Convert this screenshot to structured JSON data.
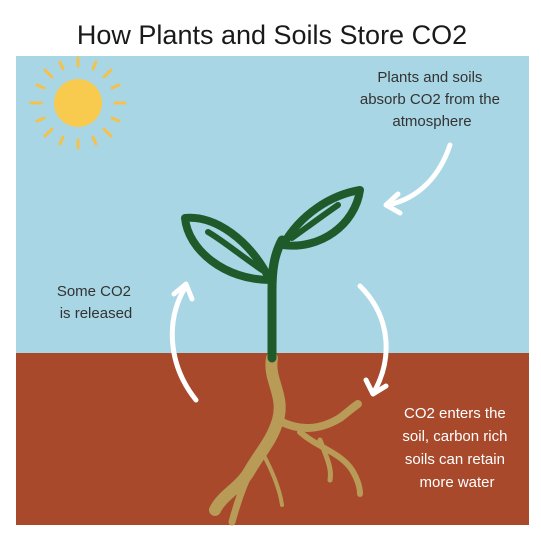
{
  "title": "How Plants and Soils Store CO2",
  "annotations": [
    {
      "lines": [
        "Plants and soils",
        "absorb CO2 from the",
        "atmosphere"
      ]
    },
    {
      "lines": [
        "Some CO2",
        "is released"
      ]
    },
    {
      "lines": [
        "CO2 enters the",
        "soil, carbon rich",
        "soils can  retain",
        "more water"
      ]
    }
  ]
}
